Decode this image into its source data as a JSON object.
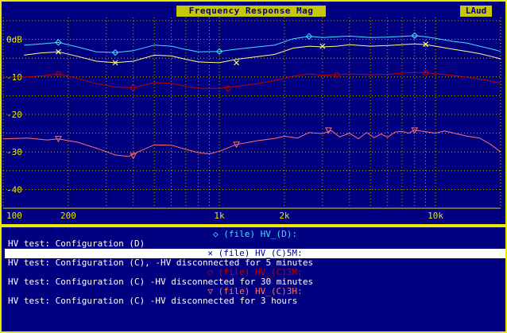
{
  "window": {
    "title": "Frequency Response Mag",
    "badge": "LAud"
  },
  "legend": [
    {
      "marker": "◇",
      "label": "(file) HV_(D):",
      "description": "HV test: Configuration (D)",
      "color": "#40e0ff"
    },
    {
      "marker": "✕",
      "label": "(file) HV_(C)5M:",
      "description": "HV test: Configuration (C), -HV disconnected for 5 minutes",
      "color": "#ffff80"
    },
    {
      "marker": "○",
      "label": "(file) HV_(C)3M:",
      "description": "HV test: Configuration (C) -HV disconnected for 30 minutes",
      "color": "#c00000"
    },
    {
      "marker": "▽",
      "label": "(file) HV_(C)3H:",
      "description": "HV test: Configuration (C) -HV disconnected for 3 hours",
      "color": "#ff7070"
    }
  ],
  "chart_data": {
    "type": "line",
    "title": "Frequency Response Mag",
    "xscale": "log",
    "xlim": [
      100,
      20000
    ],
    "ylim": [
      -45,
      5
    ],
    "grid": true,
    "xticks": [
      {
        "value": 100,
        "label": "100"
      },
      {
        "value": 200,
        "label": "200"
      },
      {
        "value": 1000,
        "label": "1k"
      },
      {
        "value": 2000,
        "label": "2k"
      },
      {
        "value": 10000,
        "label": "10k"
      }
    ],
    "yticks": [
      {
        "value": 0,
        "label": "0dB"
      },
      {
        "value": -10,
        "label": "-10"
      },
      {
        "value": -20,
        "label": "-20"
      },
      {
        "value": -30,
        "label": "-30"
      },
      {
        "value": -40,
        "label": "-40"
      }
    ],
    "series": [
      {
        "name": "(file) HV_(D):",
        "color": "#40e0ff",
        "marker": "diamond",
        "x": [
          125,
          150,
          180,
          220,
          270,
          330,
          400,
          500,
          600,
          700,
          800,
          1000,
          1200,
          1500,
          1800,
          2200,
          2600,
          3000,
          3500,
          4000,
          5000,
          6000,
          7000,
          8000,
          9000,
          10000,
          12000,
          14000,
          16000,
          18000,
          20000
        ],
        "y": [
          -1.5,
          -1.2,
          -0.8,
          -2.0,
          -3.3,
          -3.5,
          -3.0,
          -1.5,
          -1.8,
          -2.7,
          -3.3,
          -3.2,
          -2.6,
          -2.0,
          -1.5,
          0.2,
          0.8,
          0.5,
          0.7,
          0.9,
          0.5,
          0.6,
          0.8,
          1.0,
          0.7,
          0.3,
          -0.5,
          -1.0,
          -1.8,
          -2.5,
          -3.2
        ],
        "marker_x": [
          180,
          330,
          1000,
          2600,
          8000
        ],
        "marker_y": [
          -0.8,
          -3.5,
          -3.2,
          0.8,
          1.0
        ]
      },
      {
        "name": "(file) HV_(C)5M:",
        "color": "#ffff80",
        "marker": "x",
        "x": [
          125,
          150,
          180,
          220,
          270,
          330,
          400,
          500,
          600,
          700,
          800,
          1000,
          1200,
          1500,
          1800,
          2200,
          2600,
          3000,
          3500,
          4000,
          5000,
          6000,
          7000,
          8000,
          9000,
          10000,
          12000,
          14000,
          16000,
          18000,
          20000
        ],
        "y": [
          -4.2,
          -3.6,
          -3.3,
          -4.5,
          -5.8,
          -6.2,
          -5.8,
          -4.2,
          -4.4,
          -5.3,
          -6.0,
          -6.2,
          -5.3,
          -4.6,
          -4.0,
          -2.3,
          -1.8,
          -2.0,
          -1.8,
          -1.4,
          -1.8,
          -1.6,
          -1.4,
          -1.2,
          -1.4,
          -1.8,
          -2.6,
          -3.2,
          -3.8,
          -4.5,
          -5.2
        ],
        "marker_x": [
          180,
          330,
          1200,
          3000,
          9000
        ],
        "marker_y": [
          -3.3,
          -6.2,
          -6.2,
          -1.8,
          -1.3
        ]
      },
      {
        "name": "(file) HV_(C)3M:",
        "color": "#c00000",
        "marker": "circle",
        "x": [
          100,
          130,
          160,
          180,
          220,
          270,
          330,
          400,
          500,
          600,
          700,
          800,
          1000,
          1200,
          1500,
          1800,
          2200,
          2600,
          3000,
          3500,
          4000,
          5000,
          6000,
          7000,
          8000,
          9000,
          10000,
          12000,
          14000,
          16000,
          18000,
          20000
        ],
        "y": [
          -10.2,
          -10.0,
          -9.6,
          -9.2,
          -10.4,
          -11.8,
          -12.7,
          -12.9,
          -11.5,
          -11.7,
          -12.5,
          -13.0,
          -13.1,
          -12.5,
          -11.8,
          -11.0,
          -9.8,
          -9.2,
          -9.6,
          -9.4,
          -9.2,
          -9.4,
          -9.3,
          -9.0,
          -8.8,
          -8.9,
          -9.1,
          -9.6,
          -10.1,
          -10.6,
          -11.1,
          -11.7
        ],
        "marker_x": [
          180,
          400,
          1100,
          3500,
          9000
        ],
        "marker_y": [
          -9.2,
          -12.9,
          -13.1,
          -9.4,
          -8.9
        ]
      },
      {
        "name": "(file) HV_(C)3H:",
        "color": "#ff7070",
        "marker": "triangle",
        "x": [
          100,
          130,
          160,
          180,
          220,
          270,
          330,
          380,
          420,
          500,
          600,
          700,
          800,
          900,
          1000,
          1200,
          1500,
          1800,
          2000,
          2300,
          2600,
          3000,
          3300,
          3600,
          4000,
          4400,
          4800,
          5200,
          5600,
          6000,
          6500,
          7000,
          7500,
          8000,
          9000,
          10000,
          11000,
          12000,
          14000,
          16000,
          18000,
          20000
        ],
        "y": [
          -26.5,
          -26.3,
          -26.8,
          -26.5,
          -27.4,
          -29.0,
          -30.8,
          -31.2,
          -30.0,
          -28.1,
          -28.2,
          -29.3,
          -30.2,
          -30.5,
          -29.8,
          -28.0,
          -27.0,
          -26.4,
          -25.8,
          -26.3,
          -24.8,
          -25.1,
          -24.3,
          -26.0,
          -25.0,
          -26.5,
          -24.8,
          -26.2,
          -25.2,
          -26.1,
          -24.7,
          -24.5,
          -25.0,
          -24.2,
          -24.6,
          -25.0,
          -24.4,
          -24.9,
          -25.8,
          -26.3,
          -28.0,
          -30.0
        ],
        "marker_x": [
          180,
          400,
          1200,
          3200,
          8000
        ],
        "marker_y": [
          -26.5,
          -31.0,
          -28.0,
          -24.2,
          -24.2
        ]
      }
    ]
  }
}
